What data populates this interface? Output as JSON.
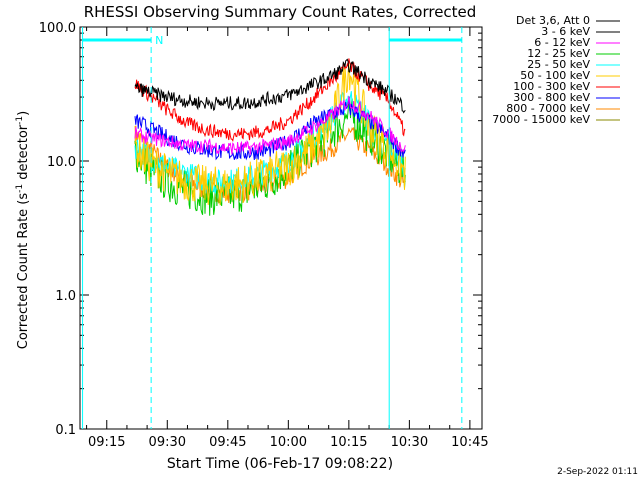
{
  "chart_data": {
    "type": "line",
    "title": "RHESSI Observing Summary Count Rates, Corrected",
    "xlabel": "Start Time (06-Feb-17 09:08:22)",
    "ylabel": "Corrected Count Rate (s⁻¹ detector⁻¹)",
    "ylabel_parts": {
      "base": "Corrected Count Rate (s",
      "exp1": "-1",
      "mid": " detector",
      "exp2": "-1",
      "end": ")"
    },
    "y_scale": "log",
    "ylim": [
      0.1,
      100.0
    ],
    "xlim": [
      "09:08:22",
      "10:48:00"
    ],
    "y_tick_labels": [
      "0.1",
      "1.0",
      "10.0",
      "100.0"
    ],
    "x_tick_labels": [
      "09:15",
      "09:30",
      "09:45",
      "10:00",
      "10:15",
      "10:30",
      "10:45"
    ],
    "legend_title": "Det 3,6, Att 0",
    "legend_placement": "right",
    "timestamp": "2-Sep-2022 01:11",
    "annotations": {
      "night_marker": "N",
      "data_start": "09:22",
      "data_end": "10:29",
      "solid_vlines": [
        "09:09",
        "10:25"
      ],
      "dashed_vlines": [
        "09:26",
        "10:43"
      ],
      "bars": [
        {
          "from": "09:09",
          "to": "09:26",
          "value": 80
        },
        {
          "from": "10:25",
          "to": "10:43",
          "value": 80
        }
      ]
    },
    "x": [
      "09:22",
      "09:25",
      "09:30",
      "09:35",
      "09:40",
      "09:45",
      "09:50",
      "09:55",
      "10:00",
      "10:05",
      "10:10",
      "10:15",
      "10:20",
      "10:25",
      "10:29"
    ],
    "series": [
      {
        "name": "3 - 6 keV",
        "color": "#000000",
        "values": [
          35,
          33,
          30,
          28,
          27,
          27,
          27,
          29,
          31,
          36,
          42,
          52,
          40,
          32,
          25
        ]
      },
      {
        "name": "6 - 12 keV",
        "color": "#ff00ff",
        "values": [
          16,
          15,
          14,
          13,
          13,
          12.5,
          12.5,
          13,
          14,
          17,
          21,
          28,
          22,
          16,
          12
        ]
      },
      {
        "name": "12 - 25 keV",
        "color": "#00cc00",
        "values": [
          12,
          9,
          7,
          6,
          5.5,
          5.5,
          6,
          7,
          9,
          12,
          16,
          22,
          16,
          11,
          8
        ]
      },
      {
        "name": "25 - 50 keV",
        "color": "#00ffff",
        "values": [
          13,
          11,
          9,
          8,
          7,
          7,
          7.5,
          8.5,
          10,
          14,
          20,
          30,
          20,
          13,
          9
        ]
      },
      {
        "name": "50 - 100 keV",
        "color": "#ffcc00",
        "values": [
          13,
          10,
          8,
          7,
          6.5,
          6.5,
          7,
          8,
          9,
          12,
          17,
          50,
          18,
          12,
          8
        ]
      },
      {
        "name": "100 - 300 keV",
        "color": "#ff0000",
        "values": [
          38,
          32,
          24,
          19,
          17,
          16,
          16,
          17,
          20,
          27,
          38,
          52,
          37,
          28,
          16
        ]
      },
      {
        "name": "300 - 800 keV",
        "color": "#0000ff",
        "values": [
          20,
          18,
          15,
          13,
          12,
          11.5,
          11.5,
          12,
          14,
          18,
          22,
          25,
          20,
          15,
          11
        ]
      },
      {
        "name": "800 - 7000 keV",
        "color": "#ff8800",
        "values": [
          16,
          13,
          9,
          7,
          6,
          5.8,
          6,
          6.5,
          7.5,
          10,
          12,
          16,
          12,
          9,
          6.5
        ]
      },
      {
        "name": "7000 - 15000 keV",
        "color": "#888800",
        "values": [
          10,
          5,
          4.5,
          4,
          3.8,
          3.8,
          4,
          4.2,
          5,
          6,
          7,
          8,
          7,
          6,
          5
        ]
      }
    ]
  }
}
